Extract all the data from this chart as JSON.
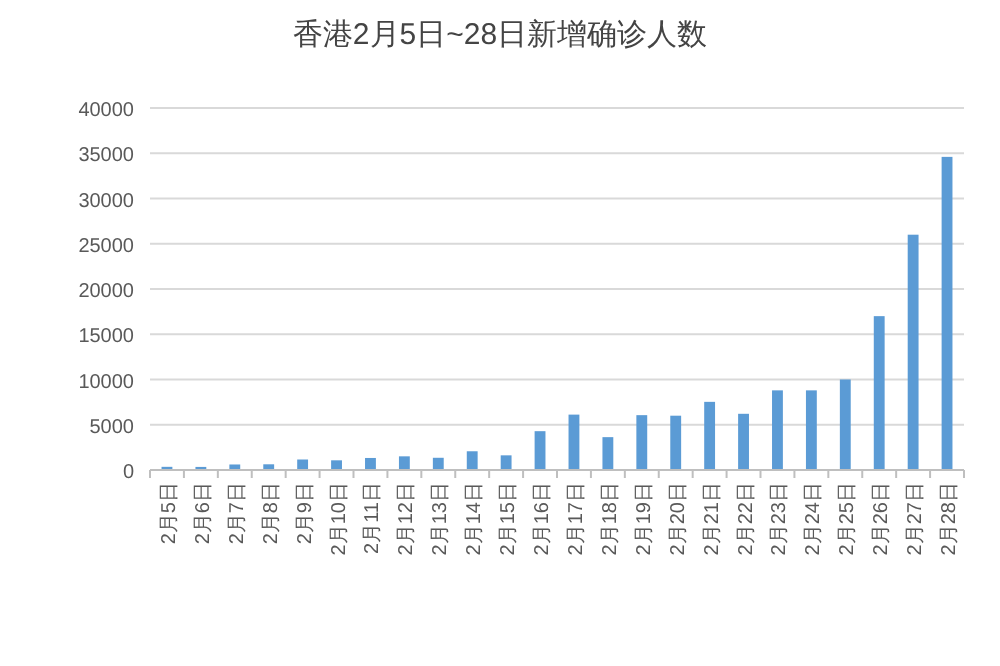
{
  "chart_data": {
    "type": "bar",
    "title": "香港2月5日~28日新增确诊人数",
    "categories": [
      "2月5日",
      "2月6日",
      "2月7日",
      "2月8日",
      "2月9日",
      "2月10日",
      "2月11日",
      "2月12日",
      "2月13日",
      "2月14日",
      "2月15日",
      "2月16日",
      "2月17日",
      "2月18日",
      "2月19日",
      "2月20日",
      "2月21日",
      "2月22日",
      "2月23日",
      "2月24日",
      "2月25日",
      "2月26日",
      "2月27日",
      "2月28日"
    ],
    "values": [
      350,
      340,
      610,
      630,
      1160,
      1070,
      1330,
      1510,
      1350,
      2070,
      1620,
      4290,
      6120,
      3630,
      6060,
      6000,
      7530,
      6210,
      8800,
      8800,
      10000,
      17000,
      26000,
      34600
    ],
    "color": "#5b9bd5",
    "ylim": [
      0,
      40000
    ],
    "yticks": [
      0,
      5000,
      10000,
      15000,
      20000,
      25000,
      30000,
      35000,
      40000
    ],
    "grid": "y"
  }
}
